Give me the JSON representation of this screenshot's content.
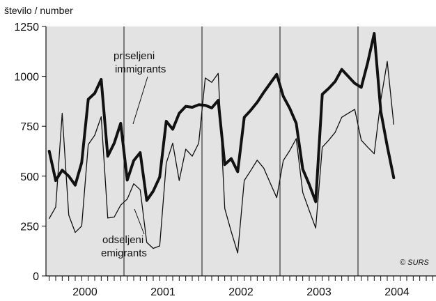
{
  "chart_data": {
    "type": "line",
    "ylabel": "število / number",
    "ylim": [
      0,
      1250
    ],
    "yticks": [
      "0",
      "250",
      "500",
      "750",
      "1000",
      "1250"
    ],
    "years": [
      "2000",
      "2001",
      "2002",
      "2003",
      "2004"
    ],
    "x_start": "2000-01",
    "months_per_year": 12,
    "grid": false,
    "background": "#e3e3e3",
    "line_color": "#111111",
    "series": [
      {
        "key": "immigrants",
        "label_sl": "priseljeni",
        "label_en": "immigrants",
        "values": [
          625,
          478,
          530,
          500,
          455,
          568,
          885,
          915,
          985,
          600,
          665,
          765,
          480,
          578,
          618,
          378,
          425,
          495,
          775,
          735,
          815,
          850,
          845,
          858,
          855,
          842,
          880,
          558,
          588,
          522,
          795,
          830,
          870,
          920,
          965,
          1010,
          900,
          840,
          765,
          535,
          458,
          372,
          910,
          940,
          975,
          1035,
          1000,
          965,
          945,
          1070,
          1215,
          825,
          650,
          492
        ]
      },
      {
        "key": "emigrants",
        "label_sl": "odseljeni",
        "label_en": "emigrants",
        "values": [
          288,
          345,
          815,
          305,
          218,
          250,
          658,
          705,
          798,
          290,
          295,
          355,
          385,
          462,
          432,
          168,
          138,
          150,
          565,
          665,
          478,
          635,
          600,
          665,
          992,
          970,
          1015,
          338,
          222,
          115,
          478,
          528,
          580,
          540,
          465,
          392,
          578,
          628,
          688,
          418,
          328,
          240,
          645,
          680,
          720,
          795,
          815,
          835,
          680,
          645,
          612,
          880,
          1075,
          760
        ]
      }
    ],
    "annotations": {
      "credit": "© SURS"
    }
  }
}
